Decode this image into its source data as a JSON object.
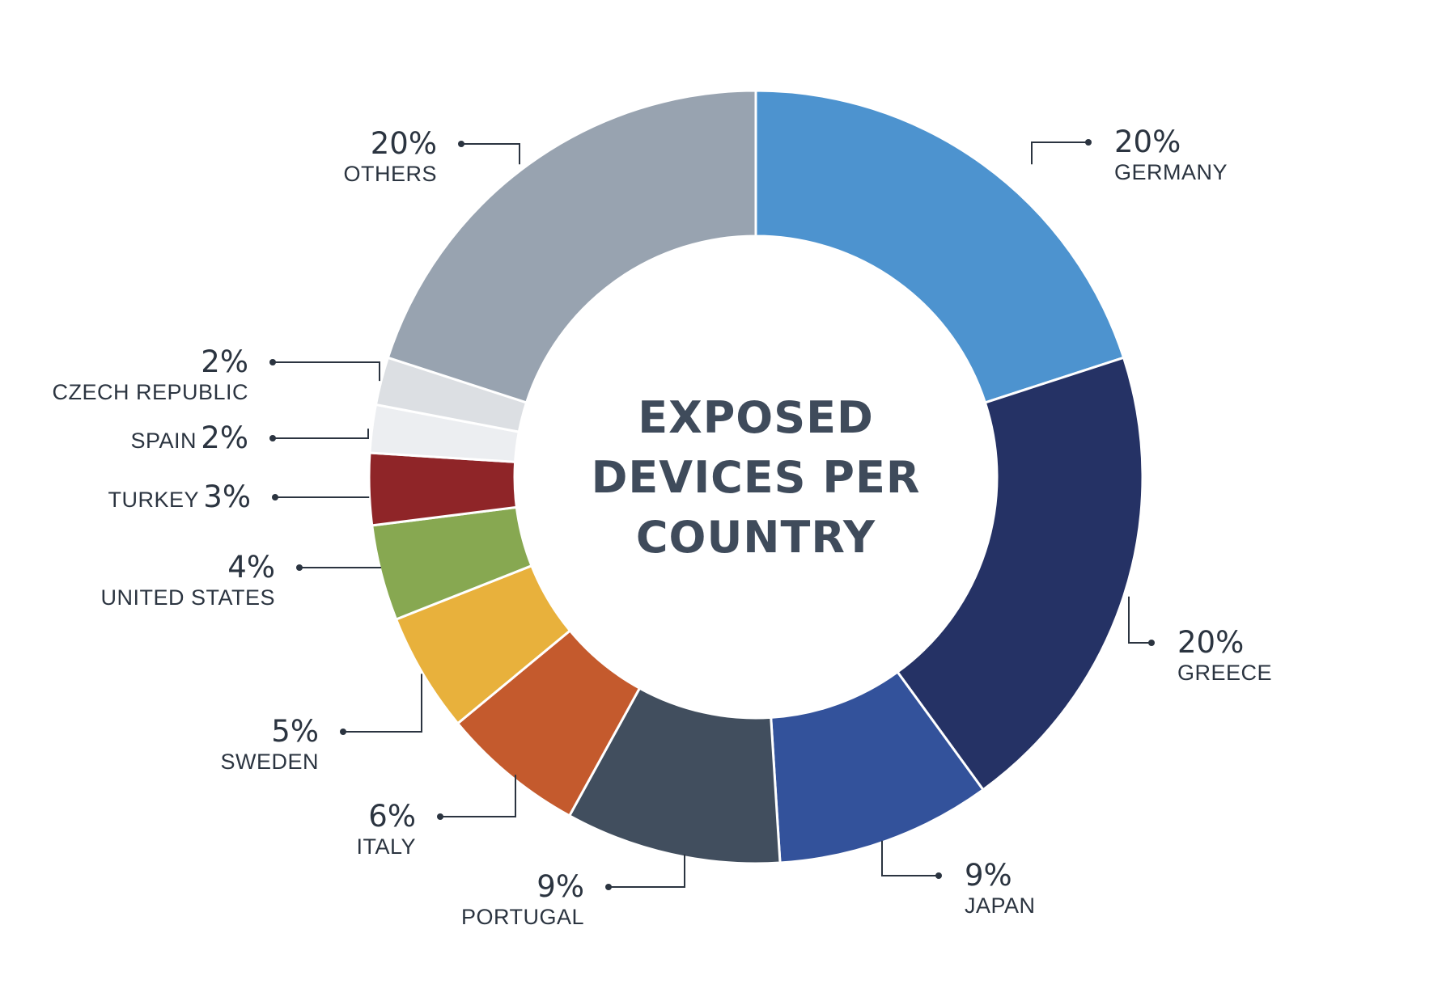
{
  "chart_data": {
    "type": "pie",
    "style": "donut",
    "title_lines": [
      "EXPOSED",
      "DEVICES PER",
      "COUNTRY"
    ],
    "start_angle_deg": 0,
    "direction": "clockwise",
    "slices": [
      {
        "label": "GERMANY",
        "value": 20,
        "value_text": "20%",
        "color": "#4d93cf"
      },
      {
        "label": "GREECE",
        "value": 20,
        "value_text": "20%",
        "color": "#253265"
      },
      {
        "label": "JAPAN",
        "value": 9,
        "value_text": "9%",
        "color": "#33529b"
      },
      {
        "label": "PORTUGAL",
        "value": 9,
        "value_text": "9%",
        "color": "#414e5e"
      },
      {
        "label": "ITALY",
        "value": 6,
        "value_text": "6%",
        "color": "#c45a2d"
      },
      {
        "label": "SWEDEN",
        "value": 5,
        "value_text": "5%",
        "color": "#e8b13c"
      },
      {
        "label": "UNITED STATES",
        "value": 4,
        "value_text": "4%",
        "color": "#87a851"
      },
      {
        "label": "TURKEY",
        "value": 3,
        "value_text": "3%",
        "color": "#8f2528"
      },
      {
        "label": "SPAIN",
        "value": 2,
        "value_text": "2%",
        "color": "#eceef1"
      },
      {
        "label": "CZECH REPUBLIC",
        "value": 2,
        "value_text": "2%",
        "color": "#dcdfe3"
      },
      {
        "label": "OTHERS",
        "value": 20,
        "value_text": "20%",
        "color": "#98a3b0"
      }
    ]
  }
}
